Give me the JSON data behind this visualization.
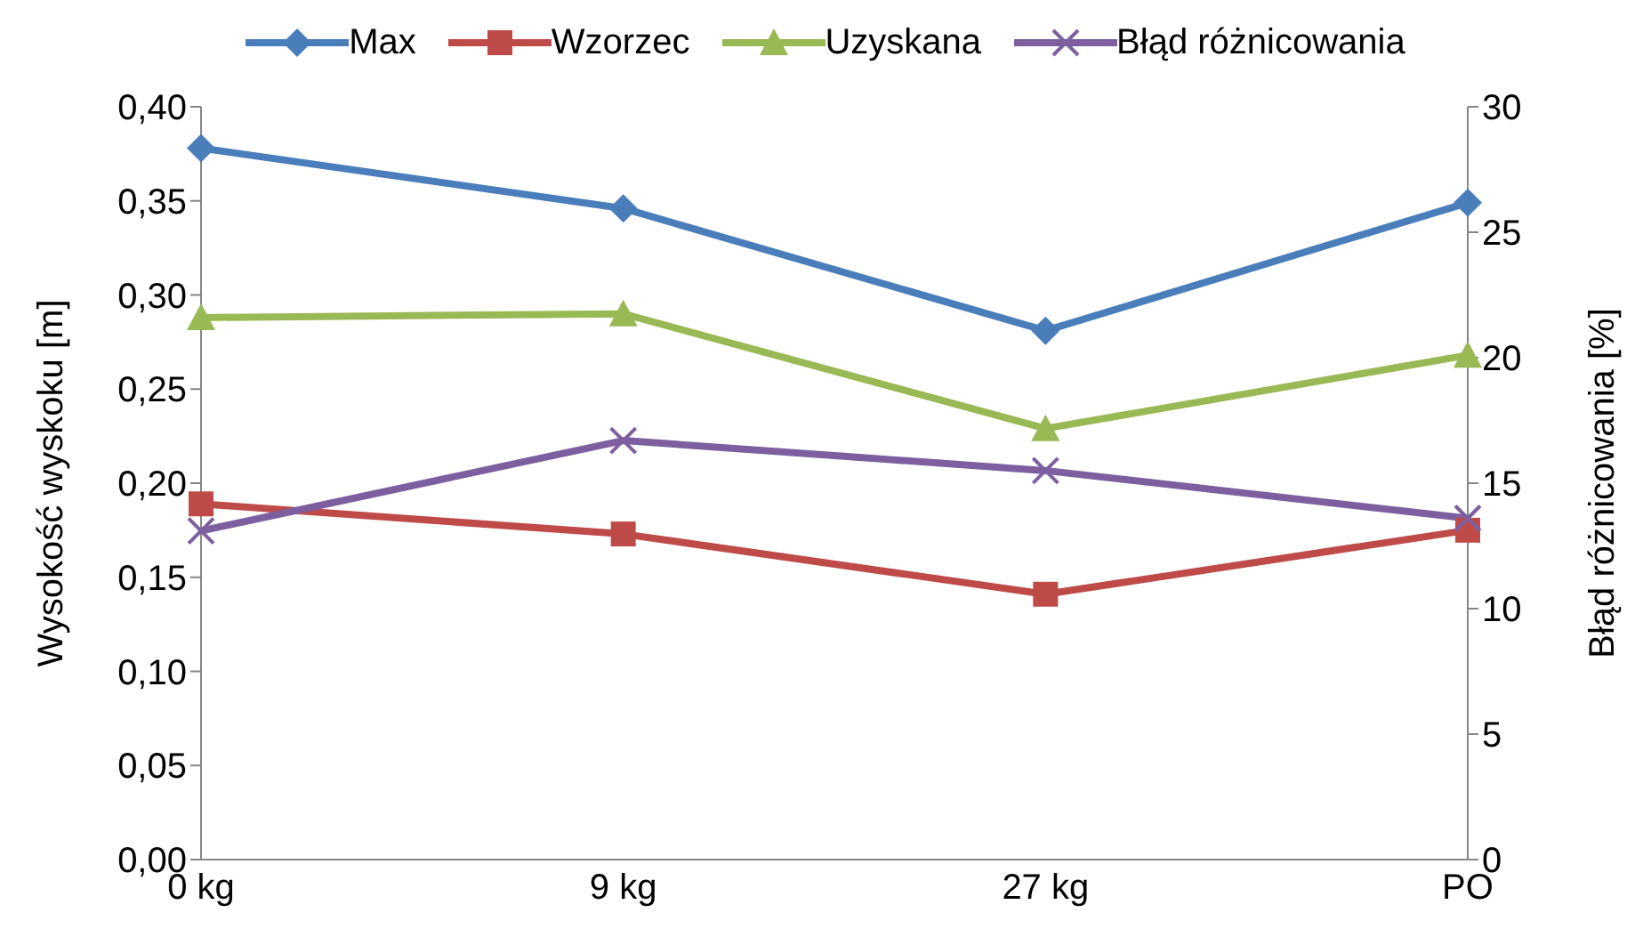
{
  "chart_data": {
    "type": "line",
    "categories": [
      "0 kg",
      "9 kg",
      "27 kg",
      "PO"
    ],
    "series": [
      {
        "name": "Max",
        "color": "#4a7ebb",
        "marker": "diamond",
        "values": [
          0.378,
          0.346,
          0.281,
          0.349
        ]
      },
      {
        "name": "Wzorzec",
        "color": "#be4b48",
        "marker": "square",
        "values": [
          0.189,
          0.173,
          0.141,
          0.175
        ]
      },
      {
        "name": "Uzyskana",
        "color": "#98b954",
        "marker": "triangle",
        "values": [
          0.288,
          0.29,
          0.229,
          0.268
        ]
      },
      {
        "name": "Błąd różnicowania",
        "color": "#7d5fa0",
        "marker": "cross",
        "axis": "y2",
        "values": [
          13.1,
          16.7,
          15.5,
          13.6
        ]
      }
    ],
    "ylabel": "Wysokość wyskoku [m]",
    "y2label": "Błąd różnicowania [%]",
    "ylim": [
      0,
      0.4
    ],
    "yticks": [
      {
        "value": 0,
        "label": "0,00"
      },
      {
        "value": 0.05,
        "label": "0,05"
      },
      {
        "value": 0.1,
        "label": "0,10"
      },
      {
        "value": 0.15,
        "label": "0,15"
      },
      {
        "value": 0.2,
        "label": "0,20"
      },
      {
        "value": 0.25,
        "label": "0,25"
      },
      {
        "value": 0.3,
        "label": "0,30"
      },
      {
        "value": 0.35,
        "label": "0,35"
      },
      {
        "value": 0.4,
        "label": "0,40"
      }
    ],
    "y2lim": [
      0,
      30
    ],
    "y2ticks": [
      0,
      5,
      10,
      15,
      20,
      25,
      30
    ],
    "grid": false,
    "legend": "top"
  }
}
